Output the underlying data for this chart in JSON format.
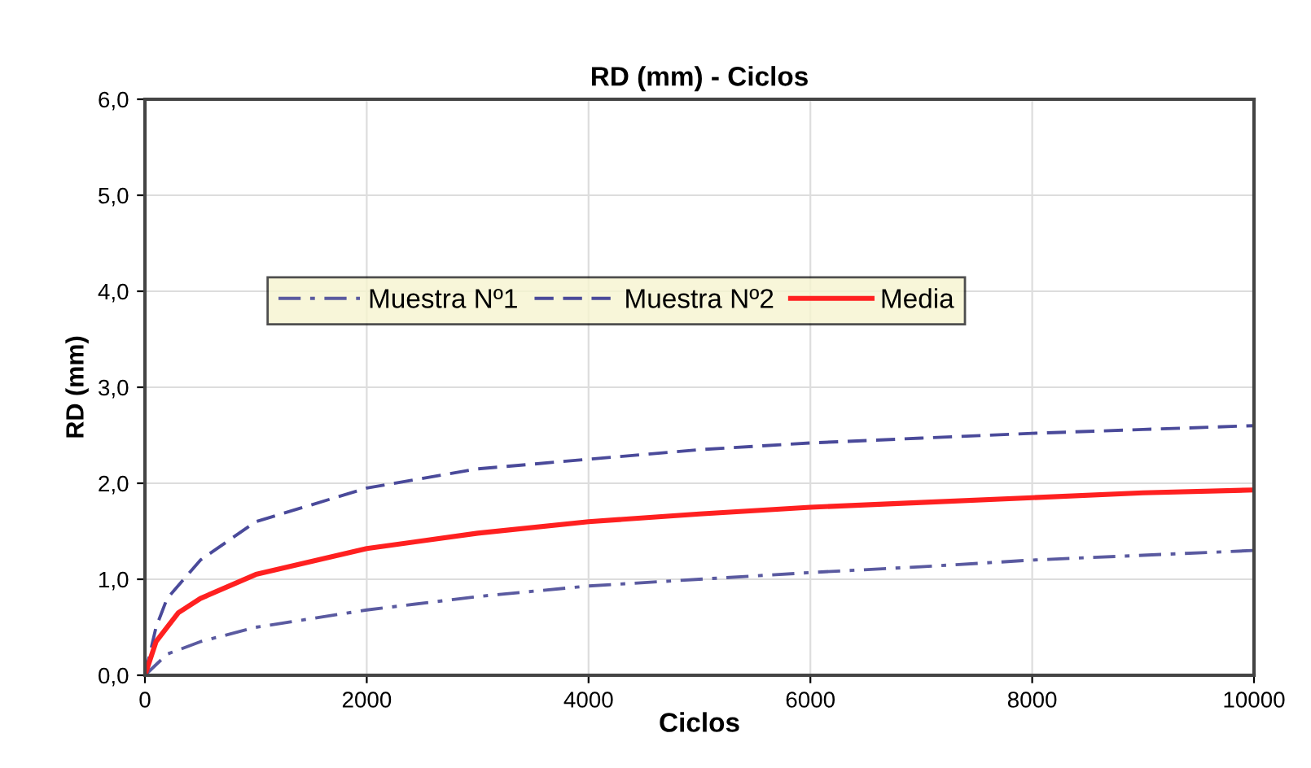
{
  "chart_data": {
    "type": "line",
    "title": "RD (mm) - Ciclos",
    "xlabel": "Ciclos",
    "ylabel": "RD (mm)",
    "xlim": [
      0,
      10000
    ],
    "xticks": [
      0,
      2000,
      4000,
      6000,
      8000,
      10000
    ],
    "ylim": [
      0,
      6
    ],
    "yticks": [
      {
        "value": 0,
        "label": "0,0"
      },
      {
        "value": 1,
        "label": "1,0"
      },
      {
        "value": 2,
        "label": "2,0"
      },
      {
        "value": 3,
        "label": "3,0"
      },
      {
        "value": 4,
        "label": "4,0"
      },
      {
        "value": 5,
        "label": "5,0"
      },
      {
        "value": 6,
        "label": "6,0"
      }
    ],
    "grid": true,
    "legend": "center",
    "marker": "none",
    "series": [
      {
        "name": "Muestra Nº1",
        "color": "#5a5aa0",
        "line_style": "dashdot",
        "x": [
          0,
          200,
          500,
          1000,
          2000,
          3000,
          4000,
          5000,
          6000,
          7000,
          8000,
          9000,
          10000
        ],
        "values": [
          0,
          0.22,
          0.35,
          0.5,
          0.68,
          0.82,
          0.93,
          1.0,
          1.07,
          1.13,
          1.2,
          1.25,
          1.3
        ]
      },
      {
        "name": "Muestra Nº2",
        "color": "#4a4a9a",
        "line_style": "dashed",
        "x": [
          0,
          100,
          200,
          500,
          1000,
          2000,
          3000,
          4000,
          5000,
          6000,
          7000,
          8000,
          9000,
          10000
        ],
        "values": [
          0,
          0.5,
          0.8,
          1.2,
          1.6,
          1.95,
          2.15,
          2.25,
          2.35,
          2.42,
          2.47,
          2.52,
          2.56,
          2.6
        ]
      },
      {
        "name": "Media",
        "color": "#ff2020",
        "line_style": "solid",
        "x": [
          0,
          100,
          300,
          500,
          1000,
          2000,
          3000,
          4000,
          5000,
          6000,
          7000,
          8000,
          9000,
          10000
        ],
        "values": [
          0,
          0.35,
          0.65,
          0.8,
          1.05,
          1.32,
          1.48,
          1.6,
          1.68,
          1.75,
          1.8,
          1.85,
          1.9,
          1.93
        ]
      }
    ]
  }
}
